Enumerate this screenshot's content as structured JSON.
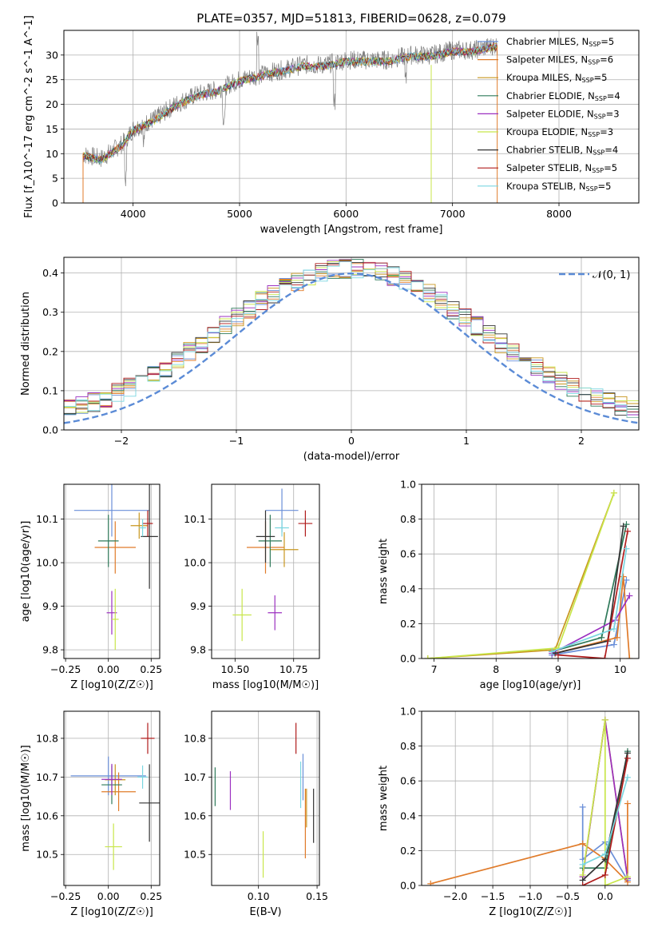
{
  "title": "PLATE=0357, MJD=51813, FIBERID=0628, z=0.079",
  "models": [
    {
      "name": "Chabrier MILES, N_SSP=5",
      "color": "#6a8fd8"
    },
    {
      "name": "Salpeter MILES, N_SSP=6",
      "color": "#e07b2a"
    },
    {
      "name": "Kroupa MILES, N_SSP=5",
      "color": "#c8961e"
    },
    {
      "name": "Chabrier ELODIE, N_SSP=4",
      "color": "#2f7a5a"
    },
    {
      "name": "Salpeter ELODIE, N_SSP=3",
      "color": "#9b30c0"
    },
    {
      "name": "Kroupa ELODIE, N_SSP=3",
      "color": "#c8e64a"
    },
    {
      "name": "Chabrier STELIB, N_SSP=4",
      "color": "#333333"
    },
    {
      "name": "Salpeter STELIB, N_SSP=5",
      "color": "#b01c1c"
    },
    {
      "name": "Kroupa STELIB, N_SSP=5",
      "color": "#7ad6e0"
    }
  ],
  "chart_data": [
    {
      "id": "spectrum",
      "type": "line",
      "xlabel": "wavelength [Angstrom, rest frame]",
      "ylabel": "Flux [f_λ10^-17 erg cm^-2 s^-1 A^-1]",
      "xlim": [
        3350,
        8750
      ],
      "ylim": [
        0,
        35
      ],
      "xticks": [
        4000,
        5000,
        6000,
        7000,
        8000
      ],
      "yticks": [
        0,
        5,
        10,
        15,
        20,
        25,
        30
      ],
      "data_series": {
        "name": "data",
        "color": "#808080",
        "x": [
          3500,
          3700,
          3900,
          4000,
          4200,
          4400,
          4600,
          4800,
          5000,
          5200,
          5400,
          5600,
          5800,
          6000,
          6200,
          6400,
          6600,
          6800,
          7000,
          7200,
          7400
        ],
        "y": [
          10,
          9,
          12,
          15,
          17,
          20,
          22,
          23,
          25,
          26,
          27,
          28,
          28,
          29,
          29,
          29,
          30,
          30,
          31,
          31,
          32
        ]
      },
      "legend": "right"
    },
    {
      "id": "residuals",
      "type": "step",
      "xlabel": "(data-model)/error",
      "ylabel": "Normed distribution",
      "xlim": [
        -2.5,
        2.5
      ],
      "ylim": [
        0,
        0.44
      ],
      "xticks": [
        -2,
        -1,
        0,
        1,
        2
      ],
      "yticks": [
        0.0,
        0.1,
        0.2,
        0.3,
        0.4
      ],
      "gauss_label": "𝒩(0, 1)",
      "legend": "top-right"
    },
    {
      "id": "age_Z",
      "type": "errorbar",
      "xlabel": "Z [log10(Z/Z☉)]",
      "ylabel": "age [log10(age/yr)]",
      "xlim": [
        -0.26,
        0.3
      ],
      "ylim": [
        9.78,
        10.18
      ],
      "xticks": [
        -0.25,
        0.0,
        0.25
      ],
      "yticks": [
        9.8,
        9.9,
        10.0,
        10.1
      ],
      "points": [
        [
          0.02,
          10.12,
          0.22,
          0.06
        ],
        [
          0.04,
          10.035,
          0.12,
          0.06
        ],
        [
          0.18,
          10.085,
          0.05,
          0.03
        ],
        [
          0.0,
          10.05,
          0.06,
          0.06
        ],
        [
          0.02,
          9.885,
          0.03,
          0.05
        ],
        [
          0.04,
          9.87,
          0.02,
          0.07
        ],
        [
          0.24,
          10.06,
          0.05,
          0.12
        ],
        [
          0.23,
          10.09,
          0.03,
          0.03
        ],
        [
          0.2,
          10.08,
          0.02,
          0.02
        ]
      ]
    },
    {
      "id": "age_mass",
      "type": "errorbar",
      "xlabel": "mass [log10(M/M☉)]",
      "ylabel": "",
      "xlim": [
        10.4,
        10.86
      ],
      "ylim": [
        9.78,
        10.18
      ],
      "xticks": [
        10.5,
        10.75
      ],
      "yticks": [
        9.8,
        9.9,
        10.0,
        10.1
      ],
      "points": [
        [
          10.7,
          10.12,
          0.07,
          0.05
        ],
        [
          10.63,
          10.035,
          0.08,
          0.06
        ],
        [
          10.71,
          10.03,
          0.06,
          0.04
        ],
        [
          10.65,
          10.05,
          0.05,
          0.06
        ],
        [
          10.67,
          9.885,
          0.03,
          0.04
        ],
        [
          10.53,
          9.88,
          0.04,
          0.06
        ],
        [
          10.63,
          10.06,
          0.04,
          0.06
        ],
        [
          10.8,
          10.09,
          0.03,
          0.03
        ],
        [
          10.7,
          10.08,
          0.03,
          0.02
        ]
      ]
    },
    {
      "id": "weight_age",
      "type": "line",
      "xlabel": "age [log10(age/yr)]",
      "ylabel": "mass weight",
      "xlim": [
        6.8,
        10.3
      ],
      "ylim": [
        0,
        1.0
      ],
      "xticks": [
        7,
        8,
        9,
        10
      ],
      "yticks": [
        0.0,
        0.2,
        0.4,
        0.6,
        0.8,
        1.0
      ],
      "series": [
        {
          "x": [
            8.9,
            9.9,
            10.1
          ],
          "y": [
            0.02,
            0.08,
            0.45
          ]
        },
        {
          "x": [
            8.95,
            9.95,
            10.05,
            10.15
          ],
          "y": [
            0.03,
            0.12,
            0.47,
            0.0
          ]
        },
        {
          "x": [
            6.9,
            8.95,
            9.9
          ],
          "y": [
            0.0,
            0.05,
            0.95
          ]
        },
        {
          "x": [
            8.9,
            9.7,
            10.1
          ],
          "y": [
            0.04,
            0.12,
            0.77
          ]
        },
        {
          "x": [
            8.9,
            9.92,
            10.15
          ],
          "y": [
            0.03,
            0.22,
            0.36
          ]
        },
        {
          "x": [
            6.9,
            9.0,
            9.9
          ],
          "y": [
            0.0,
            0.06,
            0.95
          ]
        },
        {
          "x": [
            8.95,
            9.8,
            10.05
          ],
          "y": [
            0.03,
            0.1,
            0.76
          ]
        },
        {
          "x": [
            9.0,
            9.75,
            10.12
          ],
          "y": [
            0.02,
            0.0,
            0.73
          ]
        },
        {
          "x": [
            8.9,
            9.9,
            10.1
          ],
          "y": [
            0.04,
            0.17,
            0.63
          ]
        }
      ]
    },
    {
      "id": "mass_Z",
      "type": "errorbar",
      "xlabel": "Z [log10(Z/Z☉)]",
      "ylabel": "mass [log10(M/M☉)]",
      "xlim": [
        -0.26,
        0.3
      ],
      "ylim": [
        10.42,
        10.87
      ],
      "xticks": [
        -0.25,
        0.0,
        0.25
      ],
      "yticks": [
        10.5,
        10.6,
        10.7,
        10.8
      ],
      "points": [
        [
          0.0,
          10.703,
          0.22,
          0.05
        ],
        [
          0.06,
          10.662,
          0.1,
          0.05
        ],
        [
          0.04,
          10.693,
          0.06,
          0.04
        ],
        [
          0.02,
          10.68,
          0.06,
          0.05
        ],
        [
          0.02,
          10.694,
          0.06,
          0.04
        ],
        [
          0.03,
          10.52,
          0.05,
          0.06
        ],
        [
          0.24,
          10.633,
          0.06,
          0.1
        ],
        [
          0.23,
          10.8,
          0.04,
          0.04
        ],
        [
          0.2,
          10.7,
          0.03,
          0.03
        ]
      ]
    },
    {
      "id": "mass_EBV",
      "type": "errorbar",
      "xlabel": "E(B-V)",
      "ylabel": "",
      "xlim": [
        0.06,
        0.152
      ],
      "ylim": [
        10.42,
        10.87
      ],
      "xticks": [
        0.1,
        0.15
      ],
      "yticks": [
        10.5,
        10.6,
        10.7,
        10.8
      ],
      "points": [
        [
          0.138,
          10.7,
          0,
          0.06
        ],
        [
          0.14,
          10.58,
          0,
          0.09
        ],
        [
          0.141,
          10.62,
          0,
          0.05
        ],
        [
          0.063,
          10.675,
          0,
          0.05
        ],
        [
          0.076,
          10.665,
          0,
          0.05
        ],
        [
          0.104,
          10.5,
          0,
          0.06
        ],
        [
          0.147,
          10.6,
          0,
          0.07
        ],
        [
          0.132,
          10.8,
          0,
          0.04
        ],
        [
          0.136,
          10.68,
          0,
          0.06
        ]
      ]
    },
    {
      "id": "weight_Z",
      "type": "line",
      "xlabel": "Z [log10(Z/Z☉)]",
      "ylabel": "mass weight",
      "xlim": [
        -2.45,
        0.45
      ],
      "ylim": [
        0,
        1.0
      ],
      "xticks": [
        -2.0,
        -1.5,
        -1.0,
        -0.5,
        0.0
      ],
      "yticks": [
        0.0,
        0.2,
        0.4,
        0.6,
        0.8,
        1.0
      ],
      "series": [
        {
          "x": [
            -0.3,
            -0.3,
            0.0,
            0.3
          ],
          "y": [
            0.45,
            0.15,
            0.25,
            0.03
          ]
        },
        {
          "x": [
            -2.33,
            -0.3,
            0.0,
            0.3,
            0.3
          ],
          "y": [
            0.01,
            0.24,
            0.15,
            0.02,
            0.47
          ]
        },
        {
          "x": [
            -0.3,
            0.0,
            0.3
          ],
          "y": [
            0.05,
            0.95,
            0.04
          ]
        },
        {
          "x": [
            -0.3,
            0.0,
            0.3
          ],
          "y": [
            0.1,
            0.1,
            0.77
          ]
        },
        {
          "x": [
            -0.3,
            0.0,
            0.3
          ],
          "y": [
            0.05,
            0.95,
            0.04
          ]
        },
        {
          "x": [
            -0.3,
            0.0,
            0.0,
            0.3
          ],
          "y": [
            0.06,
            0.95,
            0.0,
            0.05
          ]
        },
        {
          "x": [
            -0.3,
            0.0,
            0.3
          ],
          "y": [
            0.03,
            0.15,
            0.76
          ]
        },
        {
          "x": [
            -0.3,
            0.0,
            0.3
          ],
          "y": [
            0.0,
            0.06,
            0.73
          ]
        },
        {
          "x": [
            -0.3,
            0.0,
            0.3
          ],
          "y": [
            0.12,
            0.18,
            0.62
          ]
        }
      ]
    }
  ]
}
